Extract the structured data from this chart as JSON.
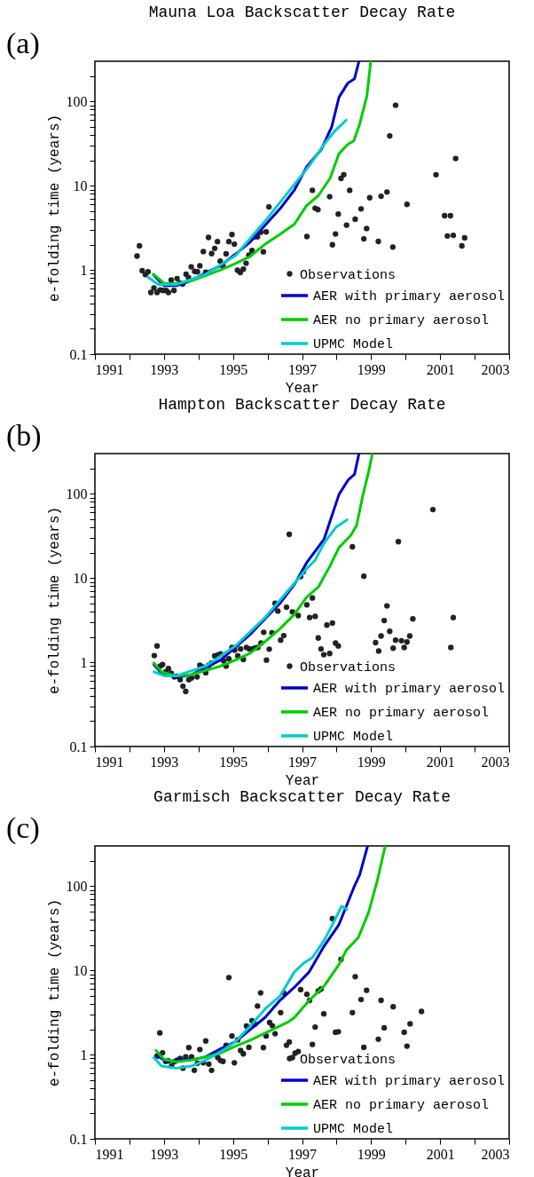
{
  "chart_data": [
    {
      "type": "scatter",
      "title": "Mauna Loa Backscatter Decay Rate",
      "xlabel": "Year",
      "ylabel": "e-folding time (years)",
      "annotations": [
        "(a)"
      ],
      "log": true,
      "legend": "bottom right",
      "xlim": [
        1991,
        2003
      ],
      "ylim": [
        0.1,
        300
      ],
      "xticks": [
        1991,
        {
          "value": 1992,
          "label": null
        },
        1993,
        {
          "value": 1994,
          "label": null
        },
        1995,
        {
          "value": 1996,
          "label": null
        },
        1997,
        {
          "value": 1998,
          "label": null
        },
        1999,
        {
          "value": 2000,
          "label": null
        },
        2001,
        {
          "value": 2002,
          "label": null
        },
        2003
      ],
      "yticks": [
        0.1,
        {
          "value": 0.2,
          "label": null
        },
        {
          "value": 0.3,
          "label": null
        },
        {
          "value": 0.4,
          "label": null
        },
        {
          "value": 0.5,
          "label": null
        },
        {
          "value": 0.6,
          "label": null
        },
        {
          "value": 0.7,
          "label": null
        },
        {
          "value": 0.8,
          "label": null
        },
        {
          "value": 0.9,
          "label": null
        },
        1,
        {
          "value": 2,
          "label": null
        },
        {
          "value": 3,
          "label": null
        },
        {
          "value": 4,
          "label": null
        },
        {
          "value": 5,
          "label": null
        },
        {
          "value": 6,
          "label": null
        },
        {
          "value": 7,
          "label": null
        },
        {
          "value": 8,
          "label": null
        },
        {
          "value": 9,
          "label": null
        },
        10,
        {
          "value": 20,
          "label": null
        },
        {
          "value": 30,
          "label": null
        },
        {
          "value": 40,
          "label": null
        },
        {
          "value": 50,
          "label": null
        },
        {
          "value": 60,
          "label": null
        },
        {
          "value": 70,
          "label": null
        },
        {
          "value": 80,
          "label": null
        },
        {
          "value": 90,
          "label": null
        },
        100,
        {
          "value": 200,
          "label": null
        }
      ],
      "series": [
        {
          "name": "Observations",
          "type": "scatter",
          "marker": "circle",
          "color": "#222222",
          "x": [
            1992.22,
            1992.29,
            1992.37,
            1992.46,
            1992.54,
            1992.62,
            1992.71,
            1992.8,
            1992.89,
            1992.97,
            1993.06,
            1993.13,
            1993.21,
            1993.29,
            1993.38,
            1993.46,
            1993.54,
            1993.64,
            1993.71,
            1993.79,
            1993.89,
            1993.97,
            1994.04,
            1994.14,
            1994.21,
            1994.29,
            1994.38,
            1994.47,
            1994.55,
            1994.63,
            1994.71,
            1994.8,
            1994.88,
            1994.97,
            1995.04,
            1995.13,
            1995.21,
            1995.3,
            1995.38,
            1995.46,
            1995.55,
            1995.63,
            1995.71,
            1995.8,
            1995.88,
            1995.96,
            1996.04,
            1997.14,
            1997.3,
            1997.38,
            1997.46,
            1997.8,
            1997.88,
            1997.97,
            1998.05,
            1998.13,
            1998.21,
            1998.29,
            1998.38,
            1998.54,
            1998.71,
            1998.79,
            1998.87,
            1998.96,
            1999.21,
            1999.29,
            1999.46,
            1999.54,
            1999.63,
            1999.71,
            2000.04,
            2000.88,
            2001.13,
            2001.3,
            2001.21,
            2001.38,
            2001.45,
            2001.63,
            2001.71
          ],
          "values": [
            1.46,
            1.93,
            0.98,
            0.88,
            0.95,
            0.54,
            0.61,
            0.54,
            0.58,
            0.57,
            0.57,
            0.54,
            0.76,
            0.57,
            0.79,
            0.7,
            0.68,
            0.89,
            0.81,
            1.09,
            0.96,
            0.95,
            1.12,
            1.65,
            0.94,
            2.43,
            1.56,
            1.8,
            2.17,
            1.27,
            1.11,
            1.55,
            2.17,
            2.63,
            2.02,
            0.99,
            0.93,
            1.02,
            1.2,
            1.5,
            1.7,
            2.47,
            2.47,
            2.8,
            1.64,
            2.83,
            5.6,
            2.49,
            8.8,
            5.4,
            5.2,
            7.4,
            1.99,
            2.67,
            4.6,
            12.2,
            13.5,
            3.4,
            8.8,
            4.0,
            5.3,
            2.34,
            3.1,
            7.2,
            2.18,
            7.5,
            8.4,
            39,
            1.87,
            90,
            6.0,
            13.5,
            4.4,
            4.4,
            2.53,
            2.57,
            21,
            1.93,
            2.4
          ]
        },
        {
          "name": "AER with primary aerosol",
          "type": "line",
          "color": "#0000cc",
          "x": [
            1992.71,
            1993.0,
            1993.36,
            1993.7,
            1994.21,
            1994.64,
            1995.07,
            1995.5,
            1995.93,
            1996.36,
            1996.78,
            1997.13,
            1997.56,
            1997.86,
            1998.07,
            1998.33,
            1998.52,
            1998.65
          ],
          "values": [
            0.86,
            0.65,
            0.65,
            0.72,
            0.92,
            1.12,
            1.54,
            2.15,
            3.4,
            5.3,
            8.9,
            16.6,
            27,
            50,
            112,
            166,
            186,
            300
          ]
        },
        {
          "name": "AER no primary aerosol",
          "type": "line",
          "color": "#00cc00",
          "x": [
            1992.69,
            1993.01,
            1993.36,
            1993.79,
            1994.21,
            1994.64,
            1995.07,
            1995.5,
            1995.93,
            1996.36,
            1996.78,
            1997.13,
            1997.47,
            1997.81,
            1998.07,
            1998.33,
            1998.5,
            1998.67,
            1998.88,
            1998.99
          ],
          "values": [
            0.89,
            0.69,
            0.69,
            0.74,
            0.86,
            1.0,
            1.19,
            1.45,
            2.02,
            2.65,
            3.5,
            5.8,
            7.6,
            12.2,
            24,
            31,
            34,
            54,
            117,
            300
          ]
        },
        {
          "name": "UPMC Model",
          "type": "line",
          "color": "#00cccc",
          "x": [
            1992.54,
            1992.84,
            1993.36,
            1994.21,
            1995.07,
            1995.93,
            1996.78,
            1997.21,
            1997.64,
            1997.98,
            1998.28
          ],
          "values": [
            0.82,
            0.67,
            0.67,
            0.89,
            1.48,
            3.8,
            10.4,
            17.3,
            31,
            46,
            60
          ]
        }
      ]
    },
    {
      "type": "scatter",
      "title": "Hampton Backscatter Decay Rate",
      "xlabel": "Year",
      "ylabel": "e-folding time (years)",
      "annotations": [
        "(b)"
      ],
      "log": true,
      "legend": "bottom right",
      "xlim": [
        1991,
        2003
      ],
      "ylim": [
        0.1,
        300
      ],
      "xticks": [
        1991,
        {
          "value": 1992,
          "label": null
        },
        1993,
        {
          "value": 1994,
          "label": null
        },
        1995,
        {
          "value": 1996,
          "label": null
        },
        1997,
        {
          "value": 1998,
          "label": null
        },
        1999,
        {
          "value": 2000,
          "label": null
        },
        2001,
        {
          "value": 2002,
          "label": null
        },
        2003
      ],
      "yticks": [
        0.1,
        {
          "value": 0.2,
          "label": null
        },
        {
          "value": 0.3,
          "label": null
        },
        {
          "value": 0.4,
          "label": null
        },
        {
          "value": 0.5,
          "label": null
        },
        {
          "value": 0.6,
          "label": null
        },
        {
          "value": 0.7,
          "label": null
        },
        {
          "value": 0.8,
          "label": null
        },
        {
          "value": 0.9,
          "label": null
        },
        1,
        {
          "value": 2,
          "label": null
        },
        {
          "value": 3,
          "label": null
        },
        {
          "value": 4,
          "label": null
        },
        {
          "value": 5,
          "label": null
        },
        {
          "value": 6,
          "label": null
        },
        {
          "value": 7,
          "label": null
        },
        {
          "value": 8,
          "label": null
        },
        {
          "value": 9,
          "label": null
        },
        10,
        {
          "value": 20,
          "label": null
        },
        {
          "value": 30,
          "label": null
        },
        {
          "value": 40,
          "label": null
        },
        {
          "value": 50,
          "label": null
        },
        {
          "value": 60,
          "label": null
        },
        {
          "value": 70,
          "label": null
        },
        {
          "value": 80,
          "label": null
        },
        {
          "value": 90,
          "label": null
        },
        100,
        {
          "value": 200,
          "label": null
        }
      ],
      "series": [
        {
          "name": "Observations",
          "type": "scatter",
          "marker": "circle",
          "color": "#222222",
          "x": [
            1992.72,
            1992.8,
            1992.89,
            1992.96,
            1993.05,
            1993.13,
            1993.21,
            1993.3,
            1993.38,
            1993.47,
            1993.55,
            1993.63,
            1993.72,
            1993.8,
            1993.96,
            1994.04,
            1994.13,
            1994.21,
            1994.3,
            1994.38,
            1994.47,
            1994.56,
            1994.64,
            1994.73,
            1994.8,
            1994.88,
            1994.97,
            1995.05,
            1995.14,
            1995.22,
            1995.3,
            1995.39,
            1995.47,
            1995.56,
            1995.64,
            1995.72,
            1995.81,
            1995.89,
            1995.97,
            1996.05,
            1996.13,
            1996.22,
            1996.3,
            1996.38,
            1996.47,
            1996.55,
            1996.63,
            1996.72,
            1996.89,
            1996.96,
            1997.04,
            1997.14,
            1997.22,
            1997.3,
            1997.38,
            1997.47,
            1997.55,
            1997.63,
            1997.72,
            1997.8,
            1997.88,
            1997.97,
            1998.05,
            1998.46,
            1998.79,
            1999.13,
            1999.22,
            1999.29,
            1999.38,
            1999.46,
            1999.54,
            1999.64,
            1999.71,
            1999.79,
            1999.88,
            1999.96,
            2000.04,
            2000.12,
            2000.21,
            2000.79,
            2001.31,
            2001.38
          ],
          "values": [
            1.2,
            1.56,
            0.9,
            0.94,
            0.77,
            0.84,
            0.74,
            0.67,
            0.68,
            0.62,
            0.52,
            0.45,
            0.62,
            0.65,
            0.67,
            0.92,
            0.88,
            0.75,
            0.92,
            0.98,
            1.19,
            1.22,
            1.26,
            1.04,
            0.9,
            1.1,
            1.5,
            1.39,
            1.19,
            1.44,
            1.08,
            1.5,
            1.44,
            1.44,
            1.48,
            1.5,
            1.69,
            2.27,
            1.06,
            1.43,
            2.24,
            5.0,
            4.05,
            1.83,
            2.07,
            4.5,
            33,
            3.96,
            3.58,
            10.4,
            11.9,
            4.8,
            3.4,
            5.8,
            3.5,
            1.94,
            1.44,
            1.23,
            2.76,
            1.27,
            2.92,
            1.69,
            1.56,
            23.5,
            10.5,
            1.71,
            1.36,
            2.05,
            3.13,
            4.67,
            2.33,
            1.47,
            1.83,
            27,
            1.8,
            1.5,
            1.74,
            2.05,
            3.28,
            65,
            1.5,
            3.39
          ]
        },
        {
          "name": "AER with primary aerosol",
          "type": "line",
          "color": "#0000cc",
          "x": [
            1992.71,
            1992.93,
            1993.36,
            1993.79,
            1994.21,
            1994.64,
            1995.07,
            1995.5,
            1995.93,
            1996.36,
            1996.78,
            1997.13,
            1997.64,
            1998.07,
            1998.33,
            1998.52,
            1998.65
          ],
          "values": [
            0.94,
            0.74,
            0.66,
            0.71,
            0.87,
            1.06,
            1.5,
            2.14,
            3.3,
            5.0,
            8.4,
            15.1,
            29,
            98,
            145,
            170,
            300
          ]
        },
        {
          "name": "AER no primary aerosol",
          "type": "line",
          "color": "#00cc00",
          "x": [
            1992.71,
            1992.93,
            1993.36,
            1993.79,
            1994.21,
            1994.64,
            1995.07,
            1995.5,
            1995.93,
            1996.36,
            1996.78,
            1997.13,
            1997.47,
            1997.81,
            1998.07,
            1998.41,
            1998.58,
            1998.75,
            1998.93,
            1999.04
          ],
          "values": [
            0.98,
            0.77,
            0.69,
            0.71,
            0.8,
            0.9,
            1.06,
            1.28,
            1.76,
            2.5,
            3.7,
            5.9,
            7.8,
            13.9,
            23,
            32,
            42,
            91,
            184,
            300
          ]
        },
        {
          "name": "UPMC Model",
          "type": "line",
          "color": "#00cccc",
          "x": [
            1992.71,
            1993.01,
            1993.36,
            1994.21,
            1995.07,
            1995.93,
            1996.78,
            1997.13,
            1997.38,
            1997.64,
            1997.98,
            1998.3
          ],
          "values": [
            0.77,
            0.69,
            0.69,
            0.9,
            1.56,
            3.4,
            8.7,
            12.9,
            16.3,
            26,
            40,
            49
          ]
        }
      ]
    },
    {
      "type": "scatter",
      "title": "Garmisch Backscatter Decay Rate",
      "xlabel": "Year",
      "ylabel": "e-folding time (years)",
      "annotations": [
        "(c)"
      ],
      "log": true,
      "legend": "bottom right",
      "xlim": [
        1991,
        2003
      ],
      "ylim": [
        0.1,
        300
      ],
      "xticks": [
        1991,
        {
          "value": 1992,
          "label": null
        },
        1993,
        {
          "value": 1994,
          "label": null
        },
        1995,
        {
          "value": 1996,
          "label": null
        },
        1997,
        {
          "value": 1998,
          "label": null
        },
        1999,
        {
          "value": 2000,
          "label": null
        },
        2001,
        {
          "value": 2002,
          "label": null
        },
        2003
      ],
      "yticks": [
        0.1,
        {
          "value": 0.2,
          "label": null
        },
        {
          "value": 0.3,
          "label": null
        },
        {
          "value": 0.4,
          "label": null
        },
        {
          "value": 0.5,
          "label": null
        },
        {
          "value": 0.6,
          "label": null
        },
        {
          "value": 0.7,
          "label": null
        },
        {
          "value": 0.8,
          "label": null
        },
        {
          "value": 0.9,
          "label": null
        },
        1,
        {
          "value": 2,
          "label": null
        },
        {
          "value": 3,
          "label": null
        },
        {
          "value": 4,
          "label": null
        },
        {
          "value": 5,
          "label": null
        },
        {
          "value": 6,
          "label": null
        },
        {
          "value": 7,
          "label": null
        },
        {
          "value": 8,
          "label": null
        },
        {
          "value": 9,
          "label": null
        },
        10,
        {
          "value": 20,
          "label": null
        },
        {
          "value": 30,
          "label": null
        },
        {
          "value": 40,
          "label": null
        },
        {
          "value": 50,
          "label": null
        },
        {
          "value": 60,
          "label": null
        },
        {
          "value": 70,
          "label": null
        },
        {
          "value": 80,
          "label": null
        },
        {
          "value": 90,
          "label": null
        },
        100,
        {
          "value": 200,
          "label": null
        }
      ],
      "series": [
        {
          "name": "Observations",
          "type": "scatter",
          "marker": "circle",
          "color": "#222222",
          "x": [
            1992.8,
            1992.88,
            1992.96,
            1993.05,
            1993.13,
            1993.22,
            1993.3,
            1993.38,
            1993.47,
            1993.55,
            1993.63,
            1993.72,
            1993.8,
            1993.88,
            1993.97,
            1994.04,
            1994.14,
            1994.21,
            1994.3,
            1994.38,
            1994.47,
            1994.56,
            1994.64,
            1994.71,
            1994.8,
            1994.88,
            1994.97,
            1995.04,
            1995.14,
            1995.22,
            1995.3,
            1995.39,
            1995.46,
            1995.55,
            1995.63,
            1995.71,
            1995.8,
            1995.88,
            1995.96,
            1996.06,
            1996.14,
            1996.22,
            1996.38,
            1996.47,
            1996.55,
            1996.63,
            1996.72,
            1996.8,
            1996.89,
            1996.96,
            1997.14,
            1997.22,
            1997.3,
            1997.38,
            1997.47,
            1997.55,
            1997.63,
            1997.88,
            1997.97,
            1998.05,
            1998.13,
            1998.46,
            1998.54,
            1998.71,
            1998.79,
            1998.87,
            1999.21,
            1999.29,
            1999.38,
            1999.64,
            1999.96,
            2000.04,
            2000.13,
            2000.46
          ],
          "values": [
            0.96,
            1.81,
            1.05,
            0.83,
            0.84,
            0.73,
            0.82,
            0.86,
            0.9,
            0.69,
            0.94,
            1.21,
            0.94,
            0.65,
            0.79,
            1.15,
            0.8,
            1.45,
            0.77,
            0.65,
            1.02,
            0.92,
            0.85,
            0.83,
            1.29,
            8.2,
            1.66,
            0.8,
            1.5,
            1.12,
            1.02,
            2.18,
            1.22,
            2.53,
            2.29,
            3.77,
            5.4,
            1.21,
            1.66,
            2.4,
            2.2,
            1.77,
            3.15,
            5.4,
            1.29,
            1.41,
            0.92,
            1.04,
            1.09,
            5.9,
            5.2,
            4.4,
            1.32,
            2.12,
            5.7,
            6.0,
            3.05,
            41,
            1.84,
            1.87,
            13.5,
            3.15,
            8.4,
            4.5,
            1.22,
            5.8,
            1.52,
            4.4,
            2.08,
            3.7,
            1.84,
            1.26,
            2.32,
            3.25
          ]
        },
        {
          "name": "AER with primary aerosol",
          "type": "line",
          "color": "#0000cc",
          "x": [
            1992.8,
            1993.1,
            1993.53,
            1993.96,
            1994.21,
            1994.64,
            1995.07,
            1995.5,
            1995.93,
            1996.36,
            1996.78,
            1997.21,
            1997.64,
            1998.07,
            1998.5,
            1998.67,
            1998.9
          ],
          "values": [
            0.96,
            0.82,
            0.87,
            0.89,
            0.94,
            1.17,
            1.42,
            1.99,
            2.76,
            4.4,
            6.3,
            9.6,
            19.4,
            35,
            96,
            136,
            300
          ]
        },
        {
          "name": "AER no primary aerosol",
          "type": "line",
          "color": "#00cc00",
          "x": [
            1992.77,
            1993.01,
            1993.36,
            1993.79,
            1994.21,
            1994.64,
            1995.07,
            1995.5,
            1995.93,
            1996.36,
            1996.61,
            1996.78,
            1997.21,
            1997.64,
            1998.07,
            1998.28,
            1998.63,
            1998.93,
            1999.18,
            1999.41
          ],
          "values": [
            1.12,
            0.87,
            0.82,
            0.86,
            0.94,
            1.04,
            1.26,
            1.48,
            1.8,
            2.18,
            2.45,
            2.76,
            4.4,
            6.5,
            11.7,
            17.3,
            24.5,
            49,
            116,
            300
          ]
        },
        {
          "name": "UPMC Model",
          "type": "line",
          "color": "#00cccc",
          "x": [
            1992.71,
            1992.93,
            1993.36,
            1993.79,
            1994.21,
            1994.64,
            1995.07,
            1995.5,
            1995.93,
            1996.36,
            1996.78,
            1997.04,
            1997.3,
            1997.64,
            1997.9,
            1998.15,
            1998.3
          ],
          "values": [
            0.92,
            0.73,
            0.69,
            0.73,
            0.86,
            1.08,
            1.42,
            2.18,
            3.48,
            4.95,
            9.6,
            12.1,
            14.2,
            22.7,
            36,
            58,
            53
          ]
        }
      ]
    }
  ]
}
